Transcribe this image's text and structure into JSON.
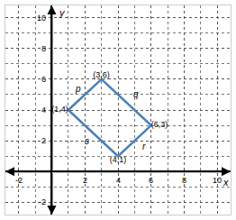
{
  "chart_data": {
    "type": "line",
    "x": [
      1,
      3,
      6,
      4
    ],
    "y": [
      4,
      6,
      3,
      1
    ],
    "point_labels": [
      "(1,4)",
      "(3,6)",
      "(6,3)",
      "(4,1)"
    ],
    "color": "#4a7fb5",
    "xlabel": "x",
    "ylabel": "y",
    "xlim": [
      -2.8,
      10.8
    ],
    "ylim": [
      -2.8,
      10.8
    ],
    "xticks": [
      -2,
      2,
      4,
      6,
      8,
      10
    ],
    "yticks": [
      -2,
      2,
      4,
      6,
      8,
      10
    ],
    "grid": true,
    "annotations": [
      {
        "text": "p",
        "x": 1.6,
        "y": 5.4
      },
      {
        "text": "q",
        "x": 5.1,
        "y": 5.0
      },
      {
        "text": "r",
        "x": 5.6,
        "y": 1.6
      },
      {
        "text": "s",
        "x": 2.1,
        "y": 2.0
      }
    ]
  }
}
